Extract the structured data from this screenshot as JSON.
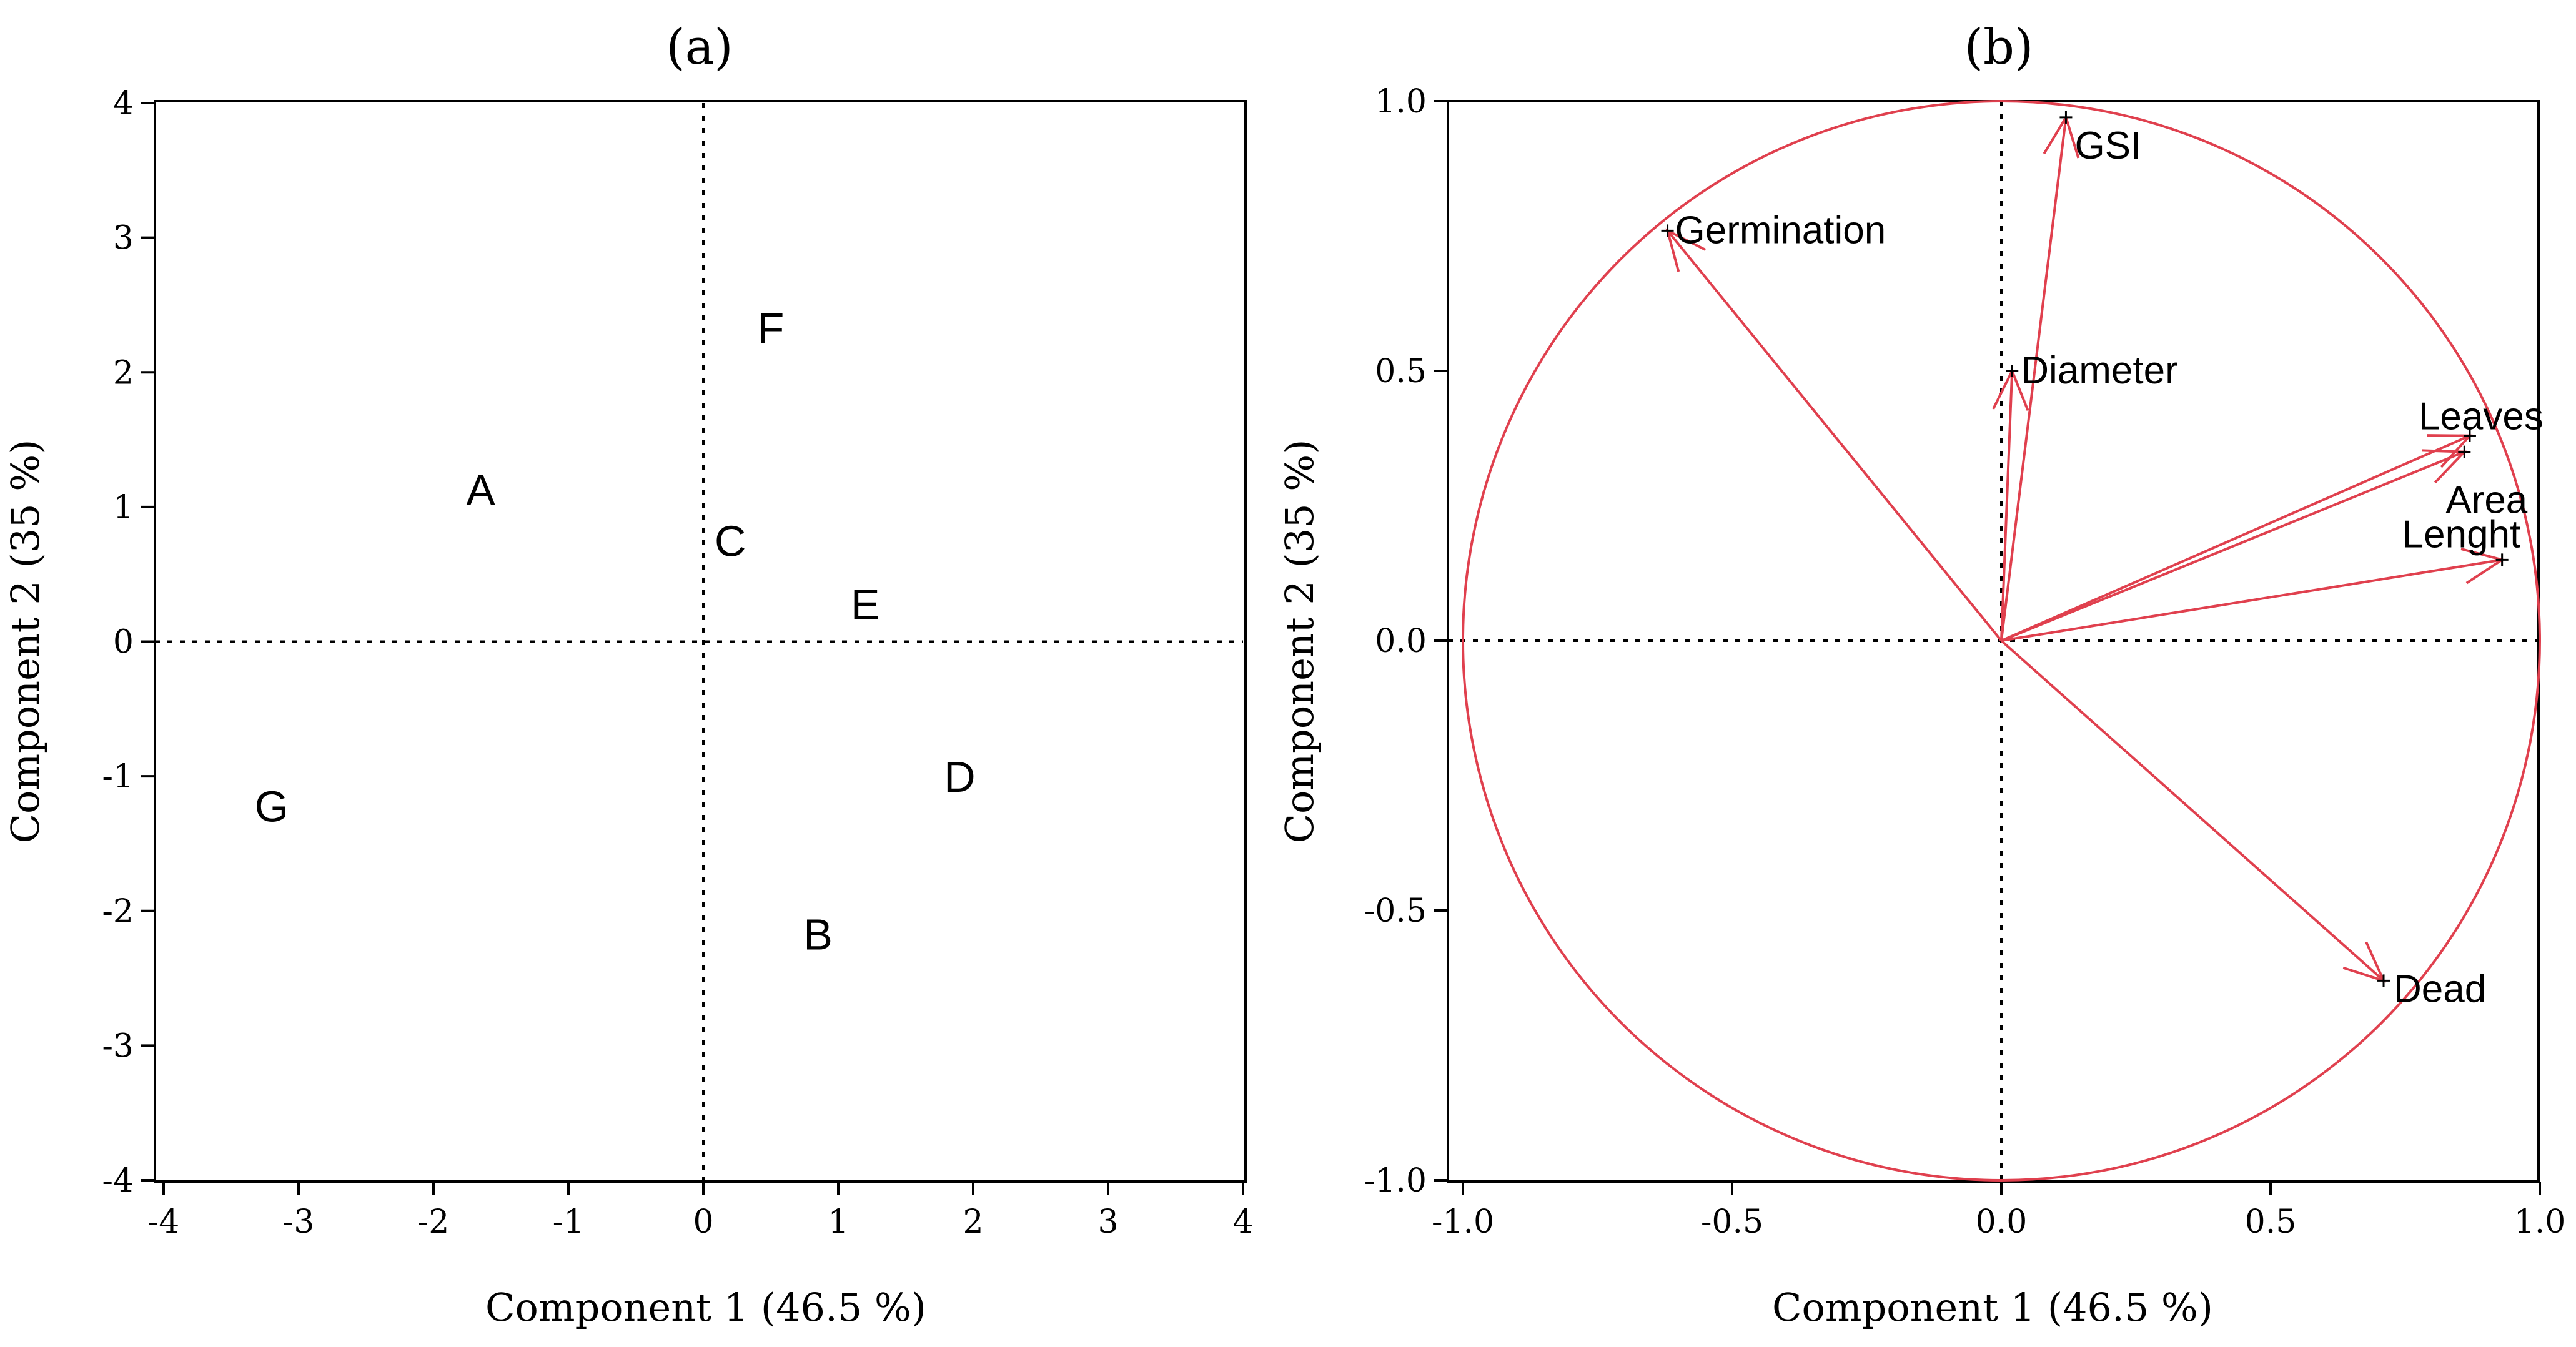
{
  "chart_data": [
    {
      "type": "scatter",
      "title": "(a)",
      "xlabel": "Component 1  (46.5 %)",
      "ylabel": "Component 2  (35 %)",
      "xlim": [
        -4,
        4
      ],
      "ylim": [
        -4,
        4
      ],
      "xticks": [
        "-4",
        "-3",
        "-2",
        "-1",
        "0",
        "1",
        "2",
        "3",
        "4"
      ],
      "yticks": [
        "4",
        "3",
        "2",
        "1",
        "0",
        "-1",
        "-2",
        "-3",
        "-4"
      ],
      "reference_lines": {
        "x": 0,
        "y": 0,
        "style": "dotted"
      },
      "points": [
        {
          "label": "A",
          "x": -1.65,
          "y": 1.1
        },
        {
          "label": "B",
          "x": 0.85,
          "y": -2.2
        },
        {
          "label": "C",
          "x": 0.2,
          "y": 0.72
        },
        {
          "label": "D",
          "x": 1.9,
          "y": -1.03
        },
        {
          "label": "E",
          "x": 1.2,
          "y": 0.25
        },
        {
          "label": "F",
          "x": 0.5,
          "y": 2.3
        },
        {
          "label": "G",
          "x": -3.2,
          "y": -1.25
        }
      ]
    },
    {
      "type": "scatter",
      "subtype": "correlation-circle",
      "title": "(b)",
      "xlabel": "Component 1  (46.5 %)",
      "ylabel": "Component 2  (35 %)",
      "xlim": [
        -1.0,
        1.0
      ],
      "ylim": [
        -1.0,
        1.0
      ],
      "xticks": [
        "-1.0",
        "-0.5",
        "0.0",
        "0.5",
        "1.0"
      ],
      "yticks": [
        "1.0",
        "0.5",
        "0.0",
        "-0.5",
        "-1.0"
      ],
      "circle_radius": 1.0,
      "reference_lines": {
        "x": 0,
        "y": 0,
        "style": "dotted"
      },
      "vectors": [
        {
          "label": "GSI",
          "x": 0.12,
          "y": 0.97
        },
        {
          "label": "Germination",
          "x": -0.62,
          "y": 0.76
        },
        {
          "label": "Diameter",
          "x": 0.02,
          "y": 0.5
        },
        {
          "label": "Leaves",
          "x": 0.87,
          "y": 0.38
        },
        {
          "label": "Area",
          "x": 0.86,
          "y": 0.35
        },
        {
          "label": "Lenght",
          "x": 0.93,
          "y": 0.15
        },
        {
          "label": "Dead",
          "x": 0.71,
          "y": -0.63
        }
      ]
    }
  ],
  "colors": {
    "vector": "#e0404e",
    "axis": "#000000"
  }
}
